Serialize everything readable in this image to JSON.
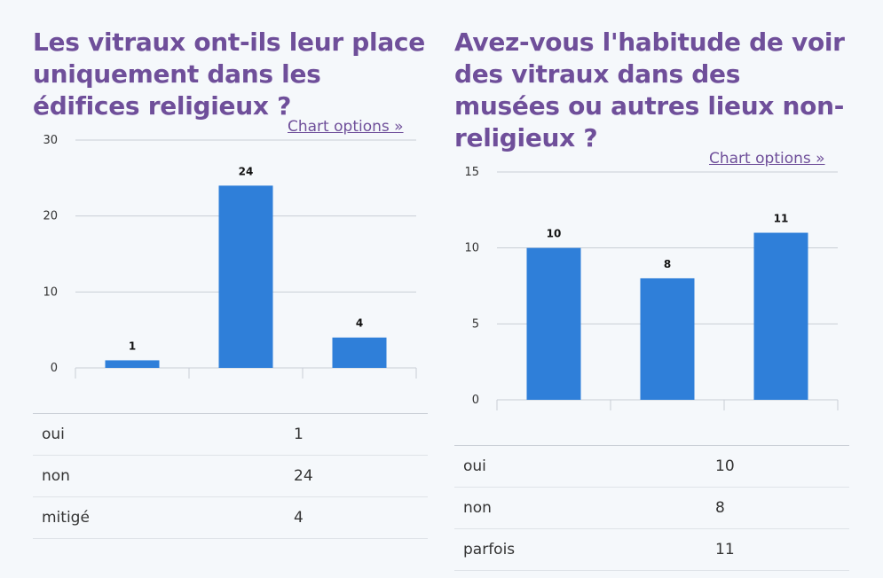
{
  "left": {
    "title": "Les vitraux ont-ils leur place uniquement dans les édifices religieux ?",
    "chart_options_label": "Chart options »",
    "table": [
      {
        "label": "oui",
        "value": "1"
      },
      {
        "label": "non",
        "value": "24"
      },
      {
        "label": "mitigé",
        "value": "4"
      }
    ]
  },
  "right": {
    "title": "Avez-vous l'habitude de voir des vitraux dans des musées ou autres lieux non-religieux ?",
    "chart_options_label": "Chart options »",
    "table": [
      {
        "label": "oui",
        "value": "10"
      },
      {
        "label": "non",
        "value": "8"
      },
      {
        "label": "parfois",
        "value": "11"
      }
    ]
  },
  "colors": {
    "bar": "#2f7fd9",
    "title": "#6f4f9a",
    "grid": "#c9ced6"
  },
  "chart_data": [
    {
      "type": "bar",
      "title": "Les vitraux ont-ils leur place uniquement dans les édifices religieux ?",
      "categories": [
        "oui",
        "non",
        "mitigé"
      ],
      "values": [
        1,
        24,
        4
      ],
      "ylim": [
        0,
        30
      ],
      "yticks": [
        0,
        10,
        20,
        30
      ],
      "grid": true,
      "data_labels": true
    },
    {
      "type": "bar",
      "title": "Avez-vous l'habitude de voir des vitraux dans des musées ou autres lieux non-religieux ?",
      "categories": [
        "oui",
        "non",
        "parfois"
      ],
      "values": [
        10,
        8,
        11
      ],
      "ylim": [
        0,
        15
      ],
      "yticks": [
        0,
        5,
        10,
        15
      ],
      "grid": true,
      "data_labels": true
    }
  ]
}
